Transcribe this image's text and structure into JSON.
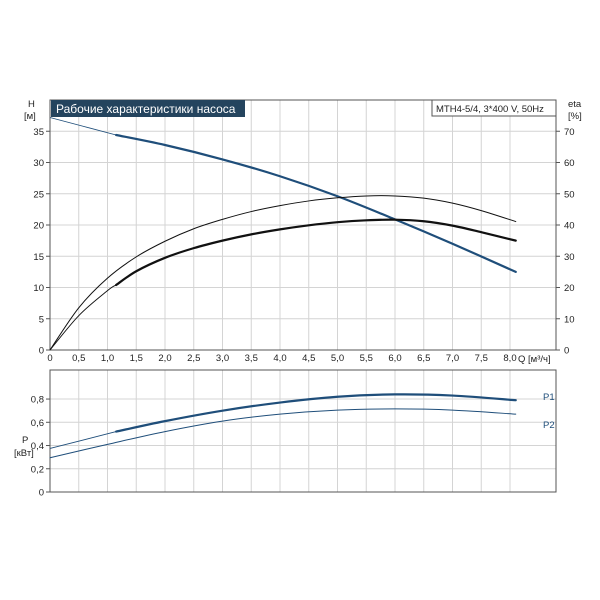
{
  "chart_data": [
    {
      "type": "line",
      "title": "Рабочие характеристики насоса",
      "model": "MTH4-5/4, 3*400 V, 50Hz",
      "xlabel": "Q [м³/ч]",
      "xlim": [
        0,
        8.8
      ],
      "x_ticks": [
        0,
        0.5,
        1.0,
        1.5,
        2.0,
        2.5,
        3.0,
        3.5,
        4.0,
        4.5,
        5.0,
        5.5,
        6.0,
        6.5,
        7.0,
        7.5,
        8.0
      ],
      "x_tick_labels": [
        "0",
        "0,5",
        "1,0",
        "1,5",
        "2,0",
        "2,5",
        "3,0",
        "3,5",
        "4,0",
        "4,5",
        "5,0",
        "5,5",
        "6,0",
        "6,5",
        "7,0",
        "7,5",
        "8,0"
      ],
      "y_left": {
        "label_top": "H",
        "label_unit": "[м]",
        "range": [
          0,
          40
        ],
        "ticks": [
          0,
          5,
          10,
          15,
          20,
          25,
          30,
          35
        ],
        "tick_labels": [
          "0",
          "5",
          "10",
          "15",
          "20",
          "25",
          "30",
          "35"
        ]
      },
      "y_right": {
        "label_top": "eta",
        "label_unit": "[%]",
        "range": [
          0,
          80
        ],
        "ticks": [
          0,
          10,
          20,
          30,
          40,
          50,
          60,
          70
        ],
        "tick_labels": [
          "0",
          "10",
          "20",
          "30",
          "40",
          "50",
          "60",
          "70"
        ]
      },
      "grid": true,
      "series": [
        {
          "id": "head",
          "axis": "left",
          "color": "#1f4e7a",
          "x_thin": [
            0,
            1.15
          ],
          "y_thin": [
            37.2,
            34.4
          ],
          "x": [
            1.15,
            2.0,
            3.0,
            4.0,
            5.0,
            6.0,
            7.0,
            8.1
          ],
          "y": [
            34.4,
            32.8,
            30.5,
            27.8,
            24.6,
            20.9,
            17.0,
            12.5
          ]
        },
        {
          "id": "eta-outer",
          "axis": "right",
          "color": "#111111",
          "thin": true,
          "x": [
            0,
            0.5,
            1.0,
            1.5,
            2.0,
            2.5,
            3.0,
            3.5,
            4.0,
            4.5,
            5.0,
            5.5,
            6.0,
            6.5,
            7.0,
            7.5,
            8.1
          ],
          "y": [
            0,
            13.5,
            23.0,
            29.8,
            34.8,
            38.8,
            41.8,
            44.3,
            46.2,
            47.7,
            48.7,
            49.3,
            49.3,
            48.6,
            47.0,
            44.6,
            41.1
          ]
        },
        {
          "id": "eta-inner",
          "axis": "right",
          "color": "#111111",
          "x_thin": [
            0,
            0.5,
            1.0,
            1.15
          ],
          "y_thin": [
            0,
            11.0,
            19.0,
            20.8
          ],
          "x": [
            1.15,
            1.5,
            2.0,
            2.5,
            3.0,
            3.5,
            4.0,
            4.5,
            5.0,
            5.5,
            6.0,
            6.5,
            7.0,
            7.5,
            8.1
          ],
          "y": [
            20.8,
            25.2,
            29.5,
            32.6,
            35.0,
            37.0,
            38.6,
            39.9,
            40.9,
            41.5,
            41.7,
            41.2,
            39.8,
            37.7,
            35.0
          ]
        }
      ]
    },
    {
      "type": "line",
      "ylabel_top": "P",
      "ylabel_unit": "[кВт]",
      "xlim": [
        0,
        8.8
      ],
      "ylim": [
        0,
        1.05
      ],
      "y_ticks": [
        0,
        0.2,
        0.4,
        0.6,
        0.8
      ],
      "y_tick_labels": [
        "0",
        "0,2",
        "0,4",
        "0,6",
        "0,8"
      ],
      "grid": true,
      "series": [
        {
          "name": "P1",
          "color": "#1f4e7a",
          "x_thin": [
            0,
            1.15
          ],
          "y_thin": [
            0.375,
            0.52
          ],
          "x": [
            1.15,
            2.0,
            3.0,
            4.0,
            5.0,
            6.0,
            7.0,
            8.1
          ],
          "y": [
            0.52,
            0.61,
            0.7,
            0.77,
            0.82,
            0.84,
            0.83,
            0.79
          ]
        },
        {
          "name": "P2",
          "color": "#1f4e7a",
          "thin": true,
          "x": [
            0,
            1.0,
            2.0,
            3.0,
            4.0,
            5.0,
            6.0,
            7.0,
            8.1
          ],
          "y": [
            0.295,
            0.41,
            0.52,
            0.61,
            0.67,
            0.705,
            0.715,
            0.705,
            0.67
          ]
        }
      ]
    }
  ]
}
